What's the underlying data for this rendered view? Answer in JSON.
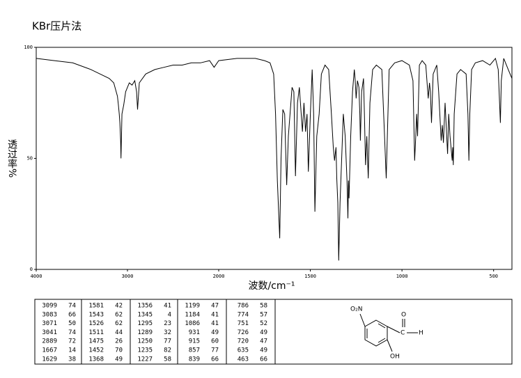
{
  "chart_data": {
    "type": "line",
    "title": "KBr压片法",
    "x_label": "波数/cm⁻¹",
    "y_label": "透过率%",
    "xlim": [
      4000,
      400
    ],
    "x_scale_change_at": 2000,
    "xticks": [
      4000,
      3000,
      2000,
      1500,
      1000,
      500
    ],
    "ylim": [
      0,
      100
    ],
    "yticks": [
      0,
      50,
      100
    ],
    "color": "#000000",
    "x": [
      4000,
      3800,
      3600,
      3400,
      3300,
      3200,
      3150,
      3110,
      3099,
      3090,
      3083,
      3075,
      3071,
      3060,
      3041,
      3020,
      2980,
      2950,
      2920,
      2900,
      2889,
      2870,
      2800,
      2700,
      2600,
      2500,
      2400,
      2300,
      2200,
      2100,
      2050,
      2000,
      1900,
      1800,
      1750,
      1720,
      1700,
      1690,
      1680,
      1667,
      1660,
      1650,
      1640,
      1635,
      1629,
      1620,
      1600,
      1590,
      1581,
      1570,
      1560,
      1543,
      1535,
      1526,
      1518,
      1511,
      1500,
      1490,
      1482,
      1475,
      1465,
      1452,
      1440,
      1420,
      1400,
      1385,
      1375,
      1368,
      1360,
      1356,
      1350,
      1345,
      1338,
      1320,
      1310,
      1300,
      1295,
      1292,
      1289,
      1280,
      1270,
      1260,
      1255,
      1250,
      1243,
      1235,
      1230,
      1227,
      1220,
      1210,
      1205,
      1199,
      1192,
      1184,
      1175,
      1160,
      1140,
      1110,
      1095,
      1086,
      1080,
      1070,
      1040,
      1000,
      980,
      960,
      940,
      931,
      925,
      920,
      915,
      905,
      890,
      870,
      857,
      850,
      845,
      839,
      830,
      810,
      800,
      786,
      780,
      774,
      765,
      751,
      745,
      738,
      726,
      723,
      720,
      715,
      700,
      680,
      650,
      640,
      635,
      630,
      620,
      600,
      560,
      520,
      490,
      475,
      463,
      458,
      445,
      420,
      400
    ],
    "values": [
      95,
      94,
      93,
      90,
      88,
      86,
      84,
      78,
      74,
      70,
      66,
      58,
      50,
      70,
      74,
      80,
      84,
      83,
      85,
      80,
      72,
      84,
      88,
      90,
      91,
      92,
      92,
      93,
      93,
      94,
      91,
      94,
      95,
      95,
      94,
      93,
      88,
      70,
      40,
      14,
      50,
      72,
      70,
      55,
      38,
      60,
      82,
      80,
      42,
      75,
      82,
      62,
      75,
      62,
      70,
      44,
      70,
      90,
      70,
      26,
      60,
      70,
      88,
      92,
      90,
      70,
      55,
      49,
      55,
      41,
      30,
      4,
      30,
      70,
      60,
      40,
      23,
      40,
      32,
      60,
      80,
      90,
      85,
      77,
      85,
      82,
      70,
      58,
      80,
      86,
      70,
      47,
      60,
      41,
      75,
      90,
      92,
      90,
      60,
      41,
      60,
      90,
      93,
      94,
      93,
      92,
      85,
      49,
      60,
      70,
      60,
      92,
      94,
      92,
      77,
      84,
      80,
      66,
      88,
      92,
      80,
      58,
      65,
      57,
      75,
      52,
      70,
      60,
      49,
      55,
      47,
      70,
      88,
      90,
      88,
      70,
      49,
      70,
      90,
      93,
      94,
      92,
      95,
      90,
      66,
      85,
      95,
      90,
      86
    ]
  },
  "table": {
    "rows": [
      [
        3099,
        74,
        1581,
        42,
        1356,
        41,
        1199,
        47,
        786,
        58
      ],
      [
        3083,
        66,
        1543,
        62,
        1345,
        4,
        1184,
        41,
        774,
        57
      ],
      [
        3071,
        50,
        1526,
        62,
        1295,
        23,
        1086,
        41,
        751,
        52
      ],
      [
        3041,
        74,
        1511,
        44,
        1289,
        32,
        931,
        49,
        726,
        49
      ],
      [
        2889,
        72,
        1475,
        26,
        1250,
        77,
        915,
        60,
        720,
        47
      ],
      [
        1667,
        14,
        1452,
        70,
        1235,
        82,
        857,
        77,
        635,
        49
      ],
      [
        1629,
        38,
        1368,
        49,
        1227,
        58,
        839,
        66,
        463,
        66
      ]
    ]
  },
  "structure": {
    "labels": [
      "O₂N",
      "C",
      "O",
      "H",
      "OH"
    ]
  }
}
